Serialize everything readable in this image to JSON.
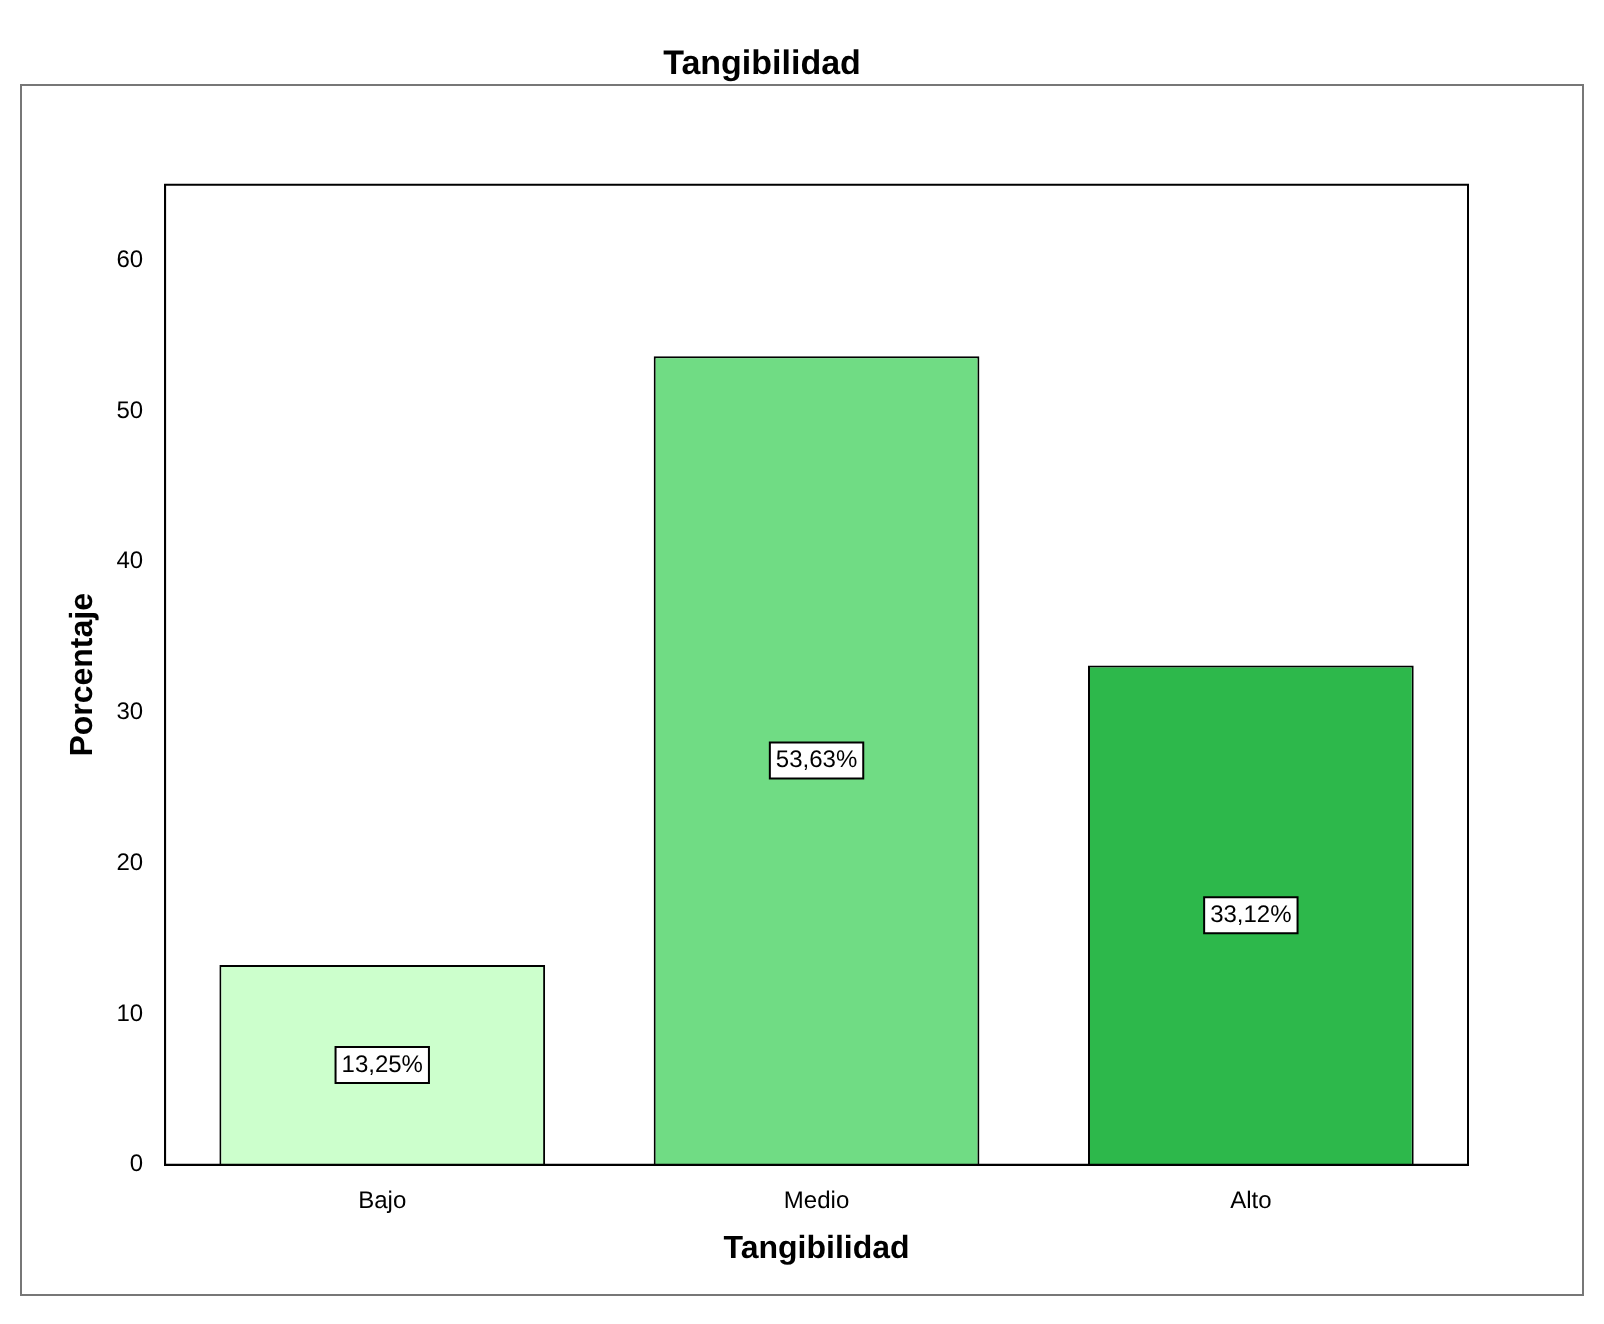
{
  "chart_data": {
    "type": "bar",
    "title": "Tangibilidad",
    "xlabel": "Tangibilidad",
    "ylabel": "Porcentaje",
    "categories": [
      "Bajo",
      "Medio",
      "Alto"
    ],
    "values": [
      13.25,
      53.63,
      33.12
    ],
    "colors": [
      "#ccffcc",
      "#70dc84",
      "#2db84b"
    ],
    "value_labels": [
      "13,25%",
      "53,63%",
      "33,12%"
    ],
    "ylim": [
      0,
      65
    ],
    "yticks": [
      0,
      10,
      20,
      30,
      40,
      50,
      60
    ],
    "grid": false,
    "legend": false
  }
}
